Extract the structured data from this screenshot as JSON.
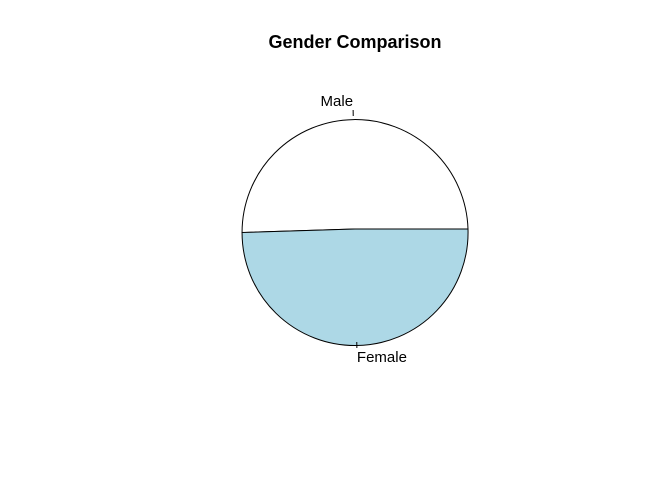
{
  "chart_data": {
    "type": "pie",
    "title": "Gender Comparison",
    "labels": [
      "Female",
      "Male"
    ],
    "values": [
      49.5,
      50.5
    ],
    "colors": [
      "#FFFFFF",
      "#ADD8E6"
    ],
    "start_angle_deg": 0,
    "direction": "counterclockwise",
    "border_color": "#000000"
  }
}
